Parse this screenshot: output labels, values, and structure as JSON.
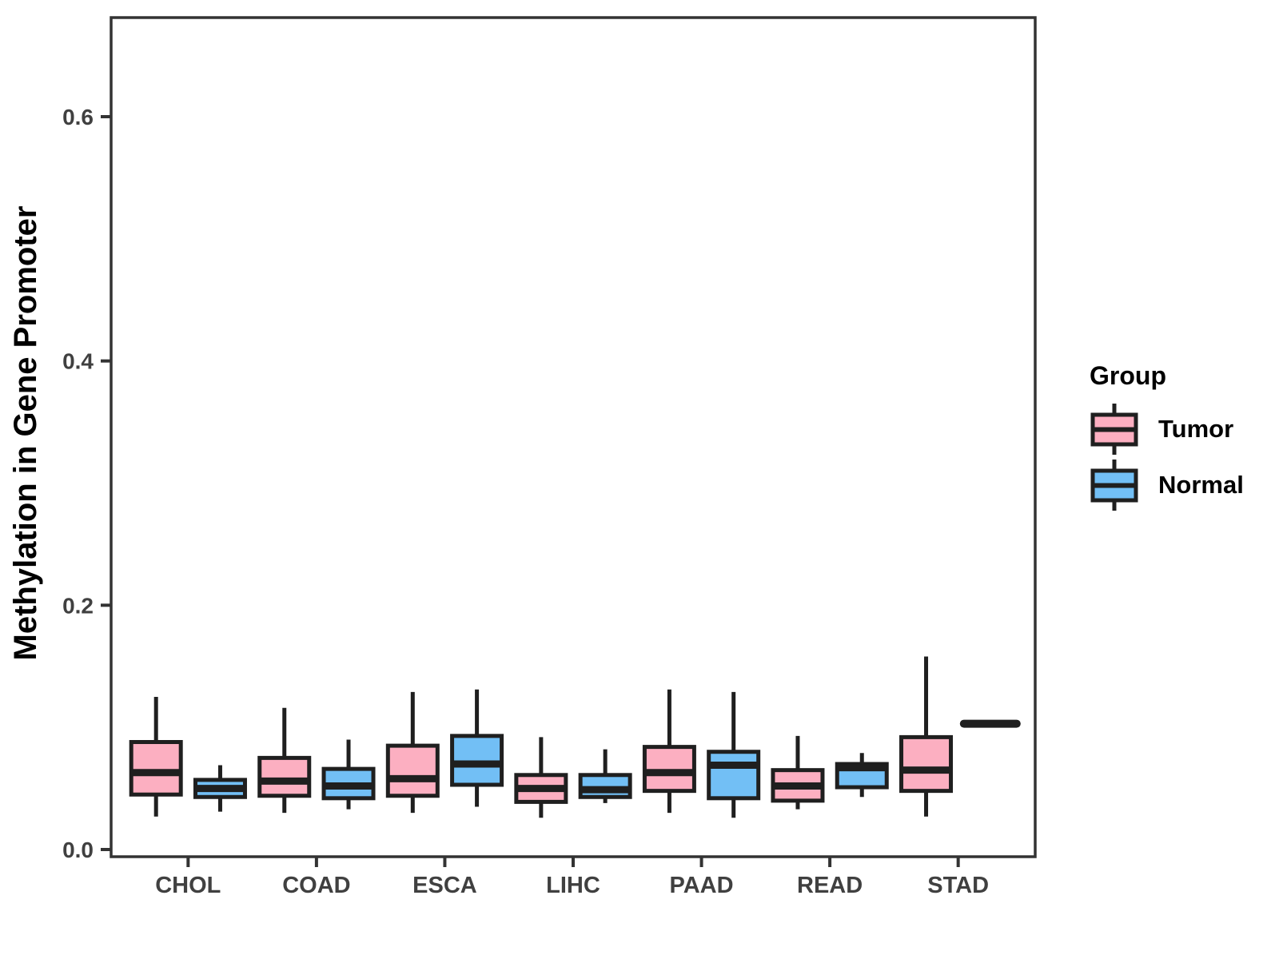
{
  "figure": {
    "background": "#ffffff"
  },
  "chart_data": {
    "type": "boxplot",
    "title": "",
    "xlabel": "",
    "ylabel": "Methylation in Gene Promoter",
    "categories": [
      "CHOL",
      "COAD",
      "ESCA",
      "LIHC",
      "PAAD",
      "READ",
      "STAD"
    ],
    "y_ticks": [
      0.0,
      0.2,
      0.4,
      0.6
    ],
    "y_tick_labels": [
      "0.0",
      "0.2",
      "0.4",
      "0.6"
    ],
    "ylim": [
      -0.006,
      0.681
    ],
    "grid": false,
    "legend_position": "right",
    "legend_title": "Group",
    "colors": {
      "box_stroke": "#1f1f1f",
      "axis": "#333333",
      "tick_text": "#404040",
      "title_text": "#000000"
    },
    "series": [
      {
        "name": "Tumor",
        "color": "#FCAFC1",
        "boxes": [
          {
            "whislo": 0.027,
            "q1": 0.045,
            "med": 0.063,
            "q3": 0.088,
            "whishi": 0.125
          },
          {
            "whislo": 0.03,
            "q1": 0.044,
            "med": 0.056,
            "q3": 0.075,
            "whishi": 0.116
          },
          {
            "whislo": 0.03,
            "q1": 0.044,
            "med": 0.058,
            "q3": 0.085,
            "whishi": 0.129
          },
          {
            "whislo": 0.026,
            "q1": 0.039,
            "med": 0.05,
            "q3": 0.061,
            "whishi": 0.092
          },
          {
            "whislo": 0.03,
            "q1": 0.048,
            "med": 0.063,
            "q3": 0.084,
            "whishi": 0.131
          },
          {
            "whislo": 0.033,
            "q1": 0.04,
            "med": 0.052,
            "q3": 0.065,
            "whishi": 0.093
          },
          {
            "whislo": 0.027,
            "q1": 0.048,
            "med": 0.065,
            "q3": 0.092,
            "whishi": 0.158
          }
        ]
      },
      {
        "name": "Normal",
        "color": "#72BFF5",
        "boxes": [
          {
            "whislo": 0.031,
            "q1": 0.043,
            "med": 0.05,
            "q3": 0.057,
            "whishi": 0.069
          },
          {
            "whislo": 0.033,
            "q1": 0.042,
            "med": 0.052,
            "q3": 0.066,
            "whishi": 0.09
          },
          {
            "whislo": 0.035,
            "q1": 0.053,
            "med": 0.07,
            "q3": 0.093,
            "whishi": 0.131
          },
          {
            "whislo": 0.038,
            "q1": 0.043,
            "med": 0.049,
            "q3": 0.061,
            "whishi": 0.082
          },
          {
            "whislo": 0.026,
            "q1": 0.042,
            "med": 0.069,
            "q3": 0.08,
            "whishi": 0.129
          },
          {
            "whislo": 0.043,
            "q1": 0.051,
            "med": 0.067,
            "q3": 0.07,
            "whishi": 0.079
          },
          {
            "whislo": 0.103,
            "q1": 0.103,
            "med": 0.103,
            "q3": 0.103,
            "whishi": 0.103
          }
        ]
      }
    ]
  }
}
